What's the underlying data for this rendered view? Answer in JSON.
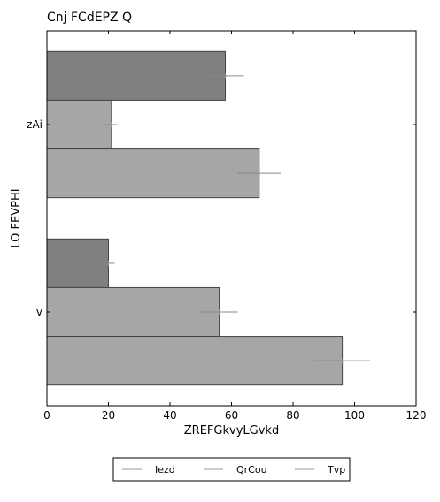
{
  "chart_data": {
    "type": "bar",
    "orientation": "horizontal",
    "title": "Cnj FCdEPZ Q",
    "xlabel": "ZREFGkvyLGvkd",
    "ylabel": "LO FEVPHI",
    "categories": [
      "zAi",
      "v"
    ],
    "xlim": [
      0,
      120
    ],
    "xticks": [
      "0",
      "20",
      "40",
      "60",
      "80",
      "100",
      "120"
    ],
    "grid": false,
    "legend_position": "bottom-center",
    "series": [
      {
        "name": "Iezd",
        "values": [
          58,
          20
        ],
        "errors": [
          6,
          2
        ],
        "color": "#808080"
      },
      {
        "name": "QrCou",
        "values": [
          21,
          56
        ],
        "errors": [
          2,
          6
        ],
        "color": "#a6a6a6"
      },
      {
        "name": "Tvp",
        "values": [
          69,
          96
        ],
        "errors": [
          7,
          9
        ],
        "color": "#a6a6a6"
      }
    ]
  }
}
